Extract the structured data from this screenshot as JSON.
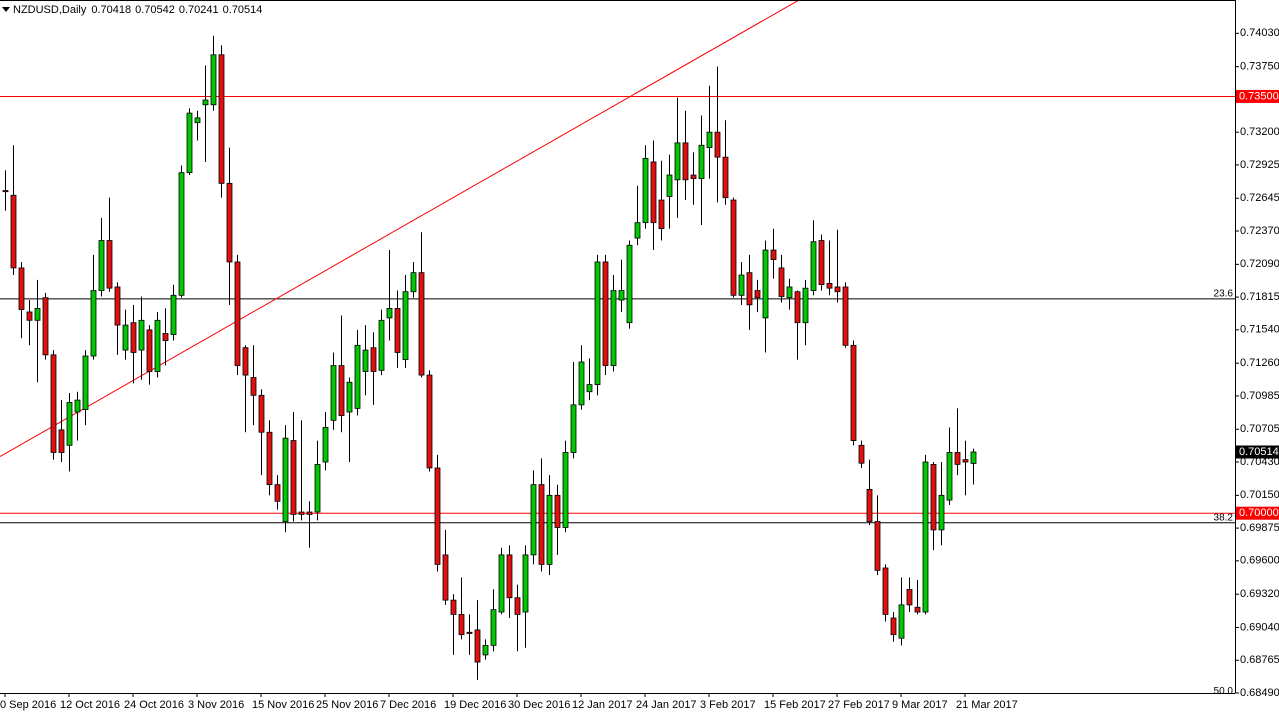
{
  "chart_data": {
    "type": "candlestick",
    "title": "NZDUSD,Daily",
    "bull_color": "#00c800",
    "bear_color": "#e01010",
    "wick_color": "#000000",
    "categories": [
      "0 Sep 2016",
      null,
      null,
      null,
      null,
      null,
      null,
      null,
      "12 Oct 2016",
      null,
      null,
      null,
      null,
      null,
      null,
      null,
      "24 Oct 2016",
      null,
      null,
      null,
      null,
      null,
      null,
      null,
      "3 Nov 2016",
      null,
      null,
      null,
      null,
      null,
      null,
      null,
      "15 Nov 2016",
      null,
      null,
      null,
      null,
      null,
      null,
      null,
      "25 Nov 2016",
      null,
      null,
      null,
      null,
      null,
      null,
      null,
      "7 Dec 2016",
      null,
      null,
      null,
      null,
      null,
      null,
      null,
      "19 Dec 2016",
      null,
      null,
      null,
      null,
      null,
      null,
      null,
      "30 Dec 2016",
      null,
      null,
      null,
      null,
      null,
      null,
      null,
      "12 Jan 2017",
      null,
      null,
      null,
      null,
      null,
      null,
      null,
      "24 Jan 2017",
      null,
      null,
      null,
      null,
      null,
      null,
      null,
      "3 Feb 2017",
      null,
      null,
      null,
      null,
      null,
      null,
      null,
      "15 Feb 2017",
      null,
      null,
      null,
      null,
      null,
      null,
      null,
      "27 Feb 2017",
      null,
      null,
      null,
      null,
      null,
      null,
      null,
      "9 Mar 2017",
      null,
      null,
      null,
      null,
      null,
      null,
      null,
      "21 Mar 2017",
      null
    ],
    "open": [
      0.7271,
      0.7267,
      0.7206,
      0.7169,
      0.7162,
      0.7181,
      0.7133,
      0.707,
      0.7057,
      0.7085,
      0.7087,
      0.7132,
      0.7187,
      0.7229,
      0.719,
      0.7137,
      0.716,
      0.7137,
      0.7154,
      0.7119,
      0.7151,
      0.715,
      0.7183,
      0.7286,
      0.7328,
      0.7343,
      0.7343,
      0.7385,
      0.7277,
      0.7211,
      0.7139,
      0.7114,
      0.7099,
      0.7068,
      0.7024,
      0.6993,
      0.7061,
      0.7001,
      0.7001,
      0.7001,
      0.7043,
      0.7078,
      0.7124,
      0.7085,
      0.7088,
      0.7119,
      0.7139,
      0.712,
      0.7164,
      0.7172,
      0.7129,
      0.7186,
      0.7202,
      0.7116,
      0.7038,
      0.6965,
      0.6927,
      0.6915,
      0.69,
      0.6902,
      0.6881,
      0.6889,
      0.6917,
      0.6965,
      0.6929,
      0.6917,
      0.6965,
      0.7024,
      0.6957,
      0.7015,
      0.6988,
      0.7051,
      0.7091,
      0.7102,
      0.7108,
      0.7211,
      0.7124,
      0.7179,
      0.716,
      0.7231,
      0.7244,
      0.7295,
      0.7263,
      0.7266,
      0.728,
      0.7311,
      0.7284,
      0.7281,
      0.7307,
      0.732,
      0.7299,
      0.7263,
      0.7183,
      0.7202,
      0.7187,
      0.7164,
      0.7221,
      0.7206,
      0.7181,
      0.7186,
      0.716,
      0.7187,
      0.7229,
      0.7193,
      0.719,
      0.719,
      0.7141,
      0.7057,
      0.702,
      0.6993,
      0.6954,
      0.6912,
      0.6895,
      0.6936,
      0.6921,
      0.6917,
      0.7041,
      0.6986,
      0.7011,
      0.7051,
      0.7045,
      0.70418
    ],
    "high": [
      0.7288,
      0.7309,
      0.7211,
      0.7179,
      0.7196,
      0.7185,
      0.7137,
      0.7095,
      0.7101,
      0.7102,
      0.7137,
      0.7217,
      0.7248,
      0.7265,
      0.7194,
      0.7171,
      0.7175,
      0.7182,
      0.7158,
      0.7169,
      0.7172,
      0.7192,
      0.7292,
      0.734,
      0.7338,
      0.7376,
      0.7401,
      0.7393,
      0.7307,
      0.7217,
      0.7141,
      0.7141,
      0.7104,
      0.7078,
      0.7032,
      0.7074,
      0.7085,
      0.7078,
      0.701,
      0.7061,
      0.7085,
      0.7135,
      0.7166,
      0.7114,
      0.7154,
      0.7158,
      0.7152,
      0.7171,
      0.7221,
      0.7187,
      0.72,
      0.7211,
      0.7236,
      0.712,
      0.7049,
      0.6986,
      0.6932,
      0.6946,
      0.6915,
      0.6927,
      0.6894,
      0.6936,
      0.6971,
      0.6973,
      0.694,
      0.6973,
      0.7036,
      0.7046,
      0.7032,
      0.7024,
      0.7061,
      0.7127,
      0.7141,
      0.713,
      0.7217,
      0.7217,
      0.72,
      0.7213,
      0.7229,
      0.7275,
      0.7309,
      0.7313,
      0.7296,
      0.7301,
      0.7349,
      0.7338,
      0.7303,
      0.7334,
      0.7359,
      0.7375,
      0.733,
      0.7265,
      0.7211,
      0.7217,
      0.7196,
      0.7229,
      0.7239,
      0.7217,
      0.7197,
      0.7187,
      0.7196,
      0.7246,
      0.7234,
      0.7229,
      0.7238,
      0.7194,
      0.7145,
      0.7061,
      0.7045,
      0.7015,
      0.6957,
      0.6917,
      0.6946,
      0.6946,
      0.6944,
      0.7049,
      0.7043,
      0.7043,
      0.7072,
      0.7088,
      0.7061,
      0.70542
    ],
    "low": [
      0.7254,
      0.72,
      0.7147,
      0.7141,
      0.711,
      0.7129,
      0.7045,
      0.7043,
      0.7035,
      0.7061,
      0.7074,
      0.7129,
      0.7182,
      0.7186,
      0.7133,
      0.7129,
      0.7109,
      0.7112,
      0.7108,
      0.7114,
      0.7124,
      0.7145,
      0.7181,
      0.7284,
      0.7313,
      0.7295,
      0.7338,
      0.7265,
      0.7175,
      0.7116,
      0.7068,
      0.7074,
      0.7032,
      0.7015,
      0.7003,
      0.6984,
      0.6993,
      0.6994,
      0.6971,
      0.6994,
      0.7036,
      0.707,
      0.7068,
      0.7043,
      0.7082,
      0.7099,
      0.7091,
      0.7116,
      0.7145,
      0.7122,
      0.7122,
      0.7181,
      0.7114,
      0.7035,
      0.6951,
      0.6923,
      0.6881,
      0.6894,
      0.6881,
      0.686,
      0.6877,
      0.6884,
      0.6915,
      0.6912,
      0.6884,
      0.6887,
      0.6957,
      0.6951,
      0.6948,
      0.6965,
      0.6984,
      0.7046,
      0.7087,
      0.7095,
      0.7099,
      0.7116,
      0.7119,
      0.7169,
      0.7155,
      0.7225,
      0.7239,
      0.7221,
      0.7229,
      0.7239,
      0.7248,
      0.7263,
      0.7259,
      0.7242,
      0.7281,
      0.7261,
      0.7259,
      0.7181,
      0.7175,
      0.7154,
      0.7169,
      0.7135,
      0.7197,
      0.7177,
      0.7171,
      0.7129,
      0.7141,
      0.7183,
      0.7187,
      0.7183,
      0.7177,
      0.7139,
      0.7057,
      0.7038,
      0.699,
      0.6948,
      0.6909,
      0.6892,
      0.6889,
      0.6917,
      0.6915,
      0.6915,
      0.6969,
      0.6973,
      0.7007,
      0.7032,
      0.7015,
      0.70241
    ],
    "close": [
      0.727,
      0.7206,
      0.7171,
      0.7162,
      0.7172,
      0.7133,
      0.7051,
      0.7051,
      0.7093,
      0.7095,
      0.7132,
      0.7187,
      0.7229,
      0.7189,
      0.7158,
      0.7158,
      0.7135,
      0.7162,
      0.7119,
      0.7162,
      0.7145,
      0.7183,
      0.7286,
      0.7336,
      0.7332,
      0.7347,
      0.7385,
      0.7277,
      0.7211,
      0.7124,
      0.7116,
      0.7099,
      0.7068,
      0.7024,
      0.701,
      0.7063,
      0.6999,
      0.6999,
      0.6999,
      0.7041,
      0.7072,
      0.7124,
      0.7082,
      0.711,
      0.7141,
      0.7137,
      0.7119,
      0.7162,
      0.7172,
      0.7135,
      0.7186,
      0.7202,
      0.7116,
      0.7038,
      0.6957,
      0.6927,
      0.6915,
      0.6898,
      0.6899,
      0.6875,
      0.6889,
      0.6919,
      0.6965,
      0.6929,
      0.6915,
      0.6965,
      0.7024,
      0.6957,
      0.7015,
      0.6988,
      0.7051,
      0.7091,
      0.7127,
      0.7108,
      0.7211,
      0.7124,
      0.7187,
      0.7187,
      0.7225,
      0.7244,
      0.7298,
      0.7244,
      0.7239,
      0.7284,
      0.7311,
      0.728,
      0.7281,
      0.7309,
      0.732,
      0.7299,
      0.7265,
      0.7183,
      0.72,
      0.7175,
      0.7181,
      0.7221,
      0.7213,
      0.7182,
      0.719,
      0.716,
      0.7189,
      0.7228,
      0.7192,
      0.7189,
      0.7186,
      0.7141,
      0.7061,
      0.7042,
      0.6993,
      0.6952,
      0.6915,
      0.6898,
      0.6923,
      0.6923,
      0.6917,
      0.7043,
      0.6986,
      0.7015,
      0.7051,
      0.7041,
      0.7043,
      0.70514
    ],
    "ylim": [
      0.6849,
      0.7431
    ],
    "yticks": [
      {
        "value": 0.7403,
        "label": "0.74030"
      },
      {
        "value": 0.7375,
        "label": "0.73750"
      },
      {
        "value": 0.732,
        "label": "0.73200"
      },
      {
        "value": 0.72925,
        "label": "0.72925"
      },
      {
        "value": 0.72645,
        "label": "0.72645"
      },
      {
        "value": 0.7237,
        "label": "0.72370"
      },
      {
        "value": 0.7209,
        "label": "0.72090"
      },
      {
        "value": 0.71815,
        "label": "0.71815"
      },
      {
        "value": 0.7154,
        "label": "0.71540"
      },
      {
        "value": 0.7126,
        "label": "0.71260"
      },
      {
        "value": 0.70985,
        "label": "0.70985"
      },
      {
        "value": 0.70705,
        "label": "0.70705"
      },
      {
        "value": 0.7043,
        "label": "0.70430"
      },
      {
        "value": 0.7015,
        "label": "0.70150"
      },
      {
        "value": 0.69875,
        "label": "0.69875"
      },
      {
        "value": 0.696,
        "label": "0.69600"
      },
      {
        "value": 0.6932,
        "label": "0.69320"
      },
      {
        "value": 0.6904,
        "label": "0.69040"
      },
      {
        "value": 0.68765,
        "label": "0.68765"
      },
      {
        "value": 0.6849,
        "label": "0.68490"
      }
    ],
    "levels": [
      {
        "value": 0.735,
        "label": "0.73500",
        "color": "#ff0000"
      },
      {
        "value": 0.7,
        "label": "0.70000",
        "color": "#ff0000"
      }
    ],
    "fibonacci": {
      "color": "#000000",
      "levels": [
        {
          "name": "23.6",
          "price": 0.718
        },
        {
          "name": "38.2",
          "price": 0.6992
        },
        {
          "name": "50.0",
          "price": 0.6846
        }
      ]
    },
    "trendline": {
      "color": "#ff0000",
      "x": [
        0,
        99
      ],
      "y": [
        0.705,
        0.743
      ]
    }
  }
}
